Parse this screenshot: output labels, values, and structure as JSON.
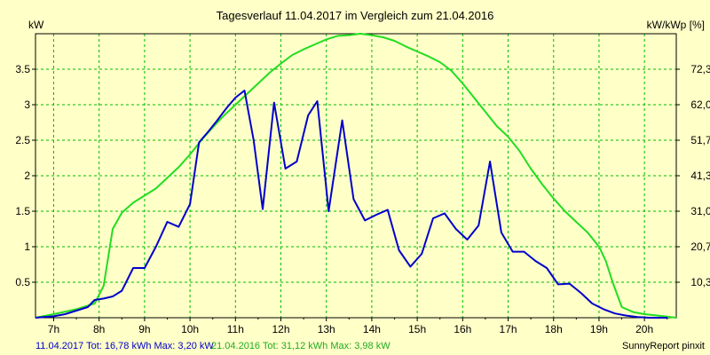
{
  "chart_data": {
    "type": "line",
    "title": "Tagesverlauf 11.04.2017 im Vergleich zum 21.04.2016",
    "ylabel_left": "kW",
    "ylabel_right": "kW/kWp [%]",
    "xlim": [
      6.6,
      20.7
    ],
    "ylim": [
      0,
      4
    ],
    "x_ticks": [
      7,
      8,
      9,
      10,
      11,
      12,
      13,
      14,
      15,
      16,
      17,
      18,
      19,
      20
    ],
    "x_tick_labels": [
      "7h",
      "8h",
      "9h",
      "10h",
      "11h",
      "12h",
      "13h",
      "14h",
      "15h",
      "16h",
      "17h",
      "18h",
      "19h",
      "20h"
    ],
    "y_ticks": [
      0.5,
      1,
      1.5,
      2,
      2.5,
      3,
      3.5
    ],
    "y_tick_labels": [
      "0.5",
      "1",
      "1.5",
      "2",
      "2.5",
      "3",
      "3.5"
    ],
    "y2_ticks": [
      0.5,
      1,
      1.5,
      2,
      2.5,
      3,
      3.5
    ],
    "y2_tick_labels": [
      "10,3",
      "20,7",
      "31,0",
      "41,3",
      "51,7",
      "62,0",
      "72,3"
    ],
    "grid": true,
    "colors": {
      "series1": "#0000cc",
      "series2": "#22dd22",
      "grid": "#00bb00",
      "background": "#ffffc8"
    },
    "series": [
      {
        "id": "s2017",
        "color": "#0000cc",
        "x": [
          6.6,
          7.0,
          7.25,
          7.5,
          7.75,
          7.9,
          8.1,
          8.3,
          8.5,
          8.75,
          9.0,
          9.25,
          9.5,
          9.75,
          10.0,
          10.2,
          10.4,
          10.6,
          10.8,
          11.0,
          11.2,
          11.4,
          11.6,
          11.85,
          12.1,
          12.35,
          12.6,
          12.8,
          13.05,
          13.35,
          13.6,
          13.85,
          14.1,
          14.35,
          14.6,
          14.85,
          15.1,
          15.35,
          15.6,
          15.85,
          16.1,
          16.35,
          16.6,
          16.85,
          17.1,
          17.35,
          17.6,
          17.85,
          18.1,
          18.35,
          18.6,
          18.85,
          19.1,
          19.35,
          19.6,
          19.85,
          20.1,
          20.3,
          20.5
        ],
        "y": [
          0,
          0.02,
          0.05,
          0.1,
          0.15,
          0.25,
          0.27,
          0.3,
          0.38,
          0.7,
          0.7,
          1.0,
          1.35,
          1.28,
          1.6,
          2.47,
          2.62,
          2.78,
          2.95,
          3.1,
          3.2,
          2.5,
          1.53,
          3.03,
          2.1,
          2.2,
          2.85,
          3.05,
          1.5,
          2.78,
          1.67,
          1.37,
          1.45,
          1.52,
          0.95,
          0.72,
          0.9,
          1.4,
          1.47,
          1.25,
          1.1,
          1.3,
          2.2,
          1.2,
          0.93,
          0.93,
          0.8,
          0.7,
          0.47,
          0.48,
          0.35,
          0.2,
          0.12,
          0.06,
          0.03,
          0.01,
          0.0,
          0.0,
          0.0
        ]
      },
      {
        "id": "s2016",
        "color": "#22dd22",
        "x": [
          6.6,
          7.0,
          7.5,
          7.9,
          8.1,
          8.3,
          8.5,
          8.75,
          9.0,
          9.25,
          9.5,
          9.75,
          10.0,
          10.25,
          10.5,
          10.75,
          11.0,
          11.25,
          11.5,
          11.75,
          12.0,
          12.25,
          12.5,
          12.75,
          13.0,
          13.25,
          13.5,
          13.75,
          14.0,
          14.25,
          14.5,
          14.75,
          15.0,
          15.25,
          15.5,
          15.75,
          16.0,
          16.25,
          16.5,
          16.75,
          17.0,
          17.25,
          17.5,
          17.75,
          18.0,
          18.25,
          18.5,
          18.75,
          19.0,
          19.15,
          19.3,
          19.5,
          19.75,
          20.0,
          20.3,
          20.7
        ],
        "y": [
          0,
          0.05,
          0.12,
          0.2,
          0.45,
          1.25,
          1.48,
          1.62,
          1.72,
          1.82,
          1.97,
          2.12,
          2.3,
          2.5,
          2.68,
          2.85,
          3.0,
          3.15,
          3.3,
          3.45,
          3.58,
          3.7,
          3.78,
          3.85,
          3.92,
          3.97,
          3.98,
          4.0,
          3.98,
          3.95,
          3.9,
          3.82,
          3.75,
          3.68,
          3.6,
          3.48,
          3.3,
          3.1,
          2.9,
          2.7,
          2.55,
          2.35,
          2.1,
          1.88,
          1.68,
          1.5,
          1.35,
          1.2,
          1.0,
          0.8,
          0.5,
          0.15,
          0.08,
          0.05,
          0.03,
          0.0
        ]
      }
    ],
    "footer": {
      "s2017_text": "11.04.2017 Tot: 16,78 kWh Max: 3,20 kW",
      "s2016_text": "21.04.2016 Tot: 31,12 kWh Max: 3,98 kW",
      "credit": "SunnyReport pinxit"
    }
  }
}
